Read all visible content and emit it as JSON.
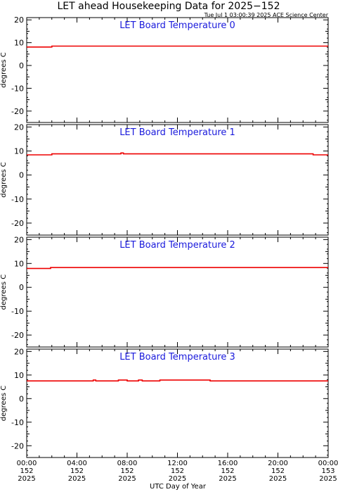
{
  "header": {
    "title": "LET ahead Housekeeping Data for 2025−152",
    "timestamp": "Tue Jul  1 03:00:39 2025 ACE Science Center"
  },
  "xaxis": {
    "label": "UTC Day of Year",
    "tick_labels": [
      [
        "00:00",
        "152",
        "2025"
      ],
      [
        "04:00",
        "152",
        "2025"
      ],
      [
        "08:00",
        "152",
        "2025"
      ],
      [
        "12:00",
        "152",
        "2025"
      ],
      [
        "16:00",
        "152",
        "2025"
      ],
      [
        "20:00",
        "152",
        "2025"
      ],
      [
        "00:00",
        "153",
        "2025"
      ]
    ]
  },
  "colors": {
    "line": "#ee0000",
    "panel_title": "#1a1adc",
    "axes": "#000000"
  },
  "chart_data": [
    {
      "type": "line",
      "title": "LET Board Temperature 0",
      "ylabel": "degrees C",
      "ylim": [
        -25,
        21
      ],
      "yticks": [
        20,
        10,
        0,
        -10,
        -20
      ],
      "xlim": [
        0,
        24
      ],
      "x": [
        0,
        2.0,
        2.0,
        24
      ],
      "values": [
        8.1,
        8.1,
        8.5,
        8.5
      ]
    },
    {
      "type": "line",
      "title": "LET Board Temperature 1",
      "ylabel": "degrees C",
      "ylim": [
        -25,
        21
      ],
      "yticks": [
        20,
        10,
        0,
        -10,
        -20
      ],
      "xlim": [
        0,
        24
      ],
      "x": [
        0,
        2.0,
        2.0,
        7.5,
        7.5,
        7.7,
        7.7,
        22.8,
        22.8,
        24
      ],
      "values": [
        8.4,
        8.4,
        8.8,
        8.8,
        9.2,
        9.2,
        8.8,
        8.8,
        8.4,
        8.4
      ]
    },
    {
      "type": "line",
      "title": "LET Board Temperature 2",
      "ylabel": "degrees C",
      "ylim": [
        -25,
        21
      ],
      "yticks": [
        20,
        10,
        0,
        -10,
        -20
      ],
      "xlim": [
        0,
        24
      ],
      "x": [
        0,
        1.9,
        1.9,
        24
      ],
      "values": [
        7.9,
        7.9,
        8.3,
        8.3
      ]
    },
    {
      "type": "line",
      "title": "LET Board Temperature 3",
      "ylabel": "degrees C",
      "ylim": [
        -25,
        21
      ],
      "yticks": [
        20,
        10,
        0,
        -10,
        -20
      ],
      "xlim": [
        0,
        24
      ],
      "x": [
        0,
        5.3,
        5.3,
        5.5,
        5.5,
        7.3,
        7.3,
        8.0,
        8.0,
        8.9,
        8.9,
        9.2,
        9.2,
        10.6,
        10.6,
        14.6,
        14.6,
        24
      ],
      "values": [
        7.5,
        7.5,
        7.9,
        7.9,
        7.5,
        7.5,
        7.9,
        7.9,
        7.5,
        7.5,
        7.9,
        7.9,
        7.5,
        7.5,
        7.9,
        7.9,
        7.5,
        7.5
      ]
    }
  ]
}
